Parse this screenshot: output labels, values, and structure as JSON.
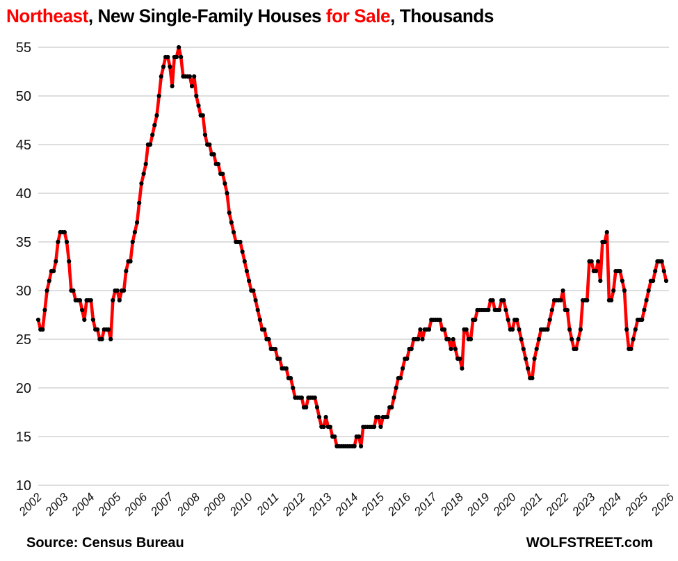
{
  "title": {
    "part1": "Northeast",
    "part2": ", New Single-Family Houses ",
    "part3": "for Sale",
    "part4": ", Thousands"
  },
  "footer": {
    "source": "Source: Census Bureau",
    "brand": "WOLFSTREET.com"
  },
  "colors": {
    "accent_red": "#ff0000",
    "line": "#ff0000",
    "dot": "#000000",
    "gridline": "#d9d9d9",
    "text": "#111111"
  },
  "chart_data": {
    "type": "line",
    "title": "Northeast, New Single-Family Houses for Sale, Thousands",
    "frequency": "monthly",
    "x_start": "2002-01",
    "x_end": "2025-11",
    "ylim": [
      10,
      55
    ],
    "y_ticks": [
      10,
      15,
      20,
      25,
      30,
      35,
      40,
      45,
      50,
      55
    ],
    "x_ticks": [
      2002,
      2003,
      2004,
      2005,
      2006,
      2007,
      2008,
      2009,
      2010,
      2011,
      2012,
      2013,
      2014,
      2015,
      2016,
      2017,
      2018,
      2019,
      2020,
      2021,
      2022,
      2023,
      2024,
      2025,
      2026
    ],
    "grid": "horizontal",
    "legend": "none",
    "series": [
      {
        "name": "New single-family houses for sale, Northeast, thousands",
        "values": [
          27,
          26,
          26,
          28,
          30,
          31,
          32,
          32,
          33,
          35,
          36,
          36,
          36,
          35,
          33,
          30,
          30,
          29,
          29,
          29,
          28,
          27,
          29,
          29,
          29,
          27,
          26,
          26,
          25,
          25,
          26,
          26,
          26,
          25,
          29,
          30,
          30,
          29,
          30,
          30,
          32,
          33,
          33,
          35,
          36,
          37,
          39,
          41,
          42,
          43,
          45,
          45,
          46,
          47,
          48,
          50,
          52,
          53,
          54,
          54,
          53,
          51,
          54,
          54,
          55,
          54,
          52,
          52,
          52,
          52,
          51,
          52,
          50,
          49,
          48,
          48,
          46,
          45,
          45,
          44,
          44,
          43,
          43,
          42,
          42,
          41,
          40,
          38,
          37,
          36,
          35,
          35,
          35,
          34,
          33,
          32,
          31,
          30,
          30,
          29,
          28,
          27,
          26,
          26,
          25,
          25,
          24,
          24,
          24,
          23,
          23,
          22,
          22,
          22,
          21,
          21,
          20,
          19,
          19,
          19,
          19,
          18,
          18,
          19,
          19,
          19,
          19,
          18,
          17,
          16,
          16,
          17,
          16,
          16,
          15,
          15,
          14,
          14,
          14,
          14,
          14,
          14,
          14,
          14,
          14,
          15,
          15,
          14,
          16,
          16,
          16,
          16,
          16,
          16,
          17,
          17,
          16,
          17,
          17,
          17,
          18,
          18,
          19,
          20,
          21,
          21,
          22,
          23,
          23,
          24,
          24,
          25,
          25,
          25,
          26,
          25,
          26,
          26,
          26,
          27,
          27,
          27,
          27,
          27,
          26,
          26,
          25,
          25,
          24,
          25,
          24,
          23,
          23,
          22,
          26,
          26,
          25,
          25,
          27,
          27,
          28,
          28,
          28,
          28,
          28,
          28,
          29,
          29,
          28,
          28,
          28,
          29,
          29,
          28,
          27,
          26,
          26,
          27,
          27,
          26,
          25,
          24,
          23,
          22,
          21,
          21,
          23,
          24,
          25,
          26,
          26,
          26,
          26,
          27,
          28,
          29,
          29,
          29,
          29,
          30,
          28,
          28,
          26,
          25,
          24,
          24,
          25,
          26,
          29,
          29,
          29,
          33,
          33,
          32,
          32,
          33,
          31,
          35,
          35,
          36,
          29,
          29,
          30,
          32,
          32,
          32,
          31,
          30,
          26,
          24,
          24,
          25,
          26,
          27,
          27,
          27,
          28,
          29,
          30,
          31,
          31,
          32,
          33,
          33,
          33,
          32,
          31
        ]
      }
    ]
  }
}
